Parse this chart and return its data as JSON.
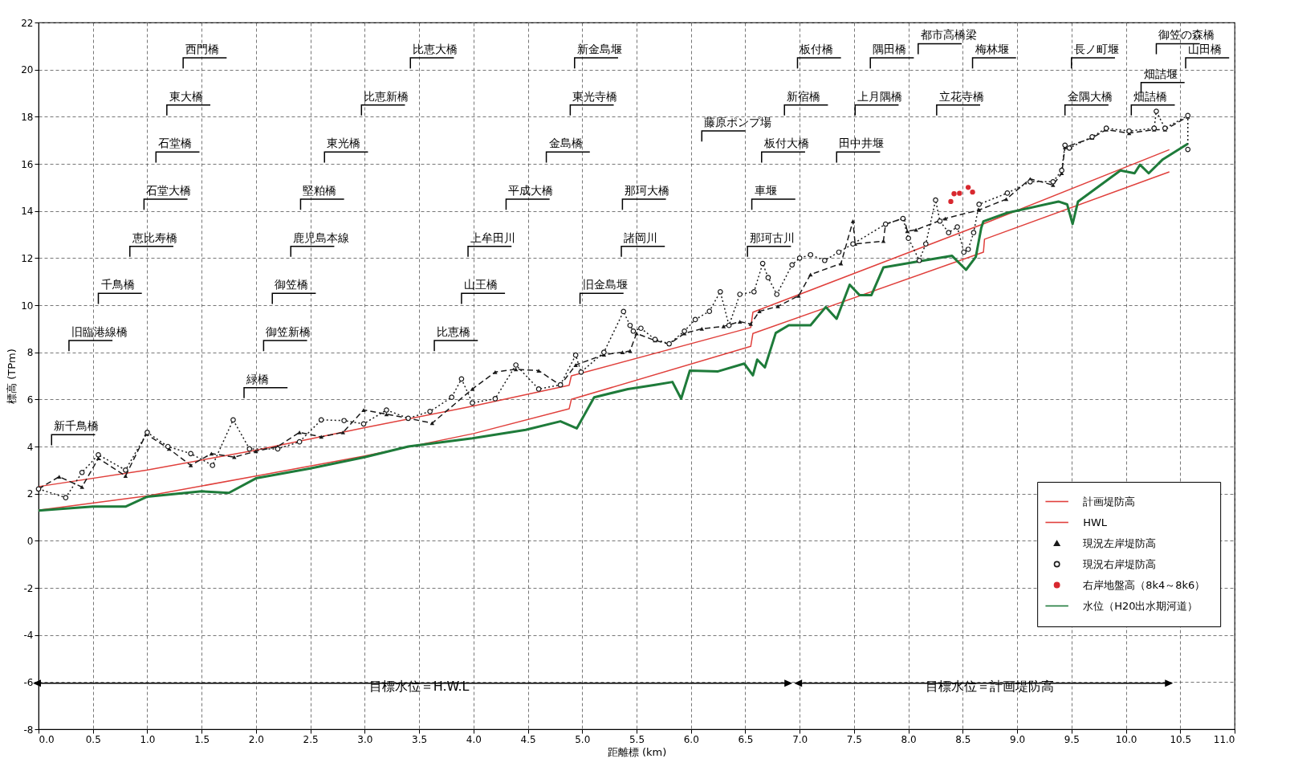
{
  "chart_data": {
    "type": "line",
    "xlabel": "距離標 (km)",
    "ylabel": "標高 (TPm)",
    "xlim": [
      0,
      11
    ],
    "ylim": [
      -8,
      22
    ],
    "xticks": [
      {
        "value": 0,
        "label": "0.0"
      },
      {
        "value": 0.5,
        "label": "0.5"
      },
      {
        "value": 1,
        "label": "1.0"
      },
      {
        "value": 1.5,
        "label": "1.5"
      },
      {
        "value": 2,
        "label": "2.0"
      },
      {
        "value": 2.5,
        "label": "2.5"
      },
      {
        "value": 3,
        "label": "3.0"
      },
      {
        "value": 3.5,
        "label": "3.5"
      },
      {
        "value": 4,
        "label": "4.0"
      },
      {
        "value": 4.5,
        "label": "4.5"
      },
      {
        "value": 5,
        "label": "5.0"
      },
      {
        "value": 5.5,
        "label": "5.5"
      },
      {
        "value": 6,
        "label": "6.0"
      },
      {
        "value": 6.5,
        "label": "6.5"
      },
      {
        "value": 7,
        "label": "7.0"
      },
      {
        "value": 7.5,
        "label": "7.5"
      },
      {
        "value": 8,
        "label": "8.0"
      },
      {
        "value": 8.5,
        "label": "8.5"
      },
      {
        "value": 9,
        "label": "9.0"
      },
      {
        "value": 9.5,
        "label": "9.5"
      },
      {
        "value": 10,
        "label": "10.0"
      },
      {
        "value": 10.5,
        "label": "10.5"
      },
      {
        "value": 11,
        "label": "11.0"
      }
    ],
    "yticks": [
      -8,
      -6,
      -4,
      -2,
      0,
      2,
      4,
      6,
      8,
      10,
      12,
      14,
      16,
      18,
      20,
      22
    ],
    "grid": true,
    "legend": "bottom right",
    "series": [
      {
        "name": "計画堤防高",
        "color": "#e0403c",
        "line_style": "solid",
        "marker": "none",
        "x": [
          0,
          1,
          2,
          3,
          4,
          4.88,
          4.9,
          6.55,
          6.57,
          8.69,
          10.4
        ],
        "values": [
          2.3,
          3.0,
          3.85,
          4.8,
          5.72,
          6.6,
          7.0,
          9.05,
          9.7,
          13.45,
          16.6
        ]
      },
      {
        "name": "HWL",
        "color": "#e0403c",
        "line_style": "solid",
        "marker": "none",
        "x": [
          0,
          1,
          2,
          3,
          4,
          4.88,
          4.9,
          6.55,
          6.57,
          8.69,
          8.7,
          10.4
        ],
        "values": [
          1.3,
          1.9,
          2.75,
          3.6,
          4.55,
          5.6,
          6.0,
          8.25,
          8.8,
          12.25,
          12.8,
          15.66
        ]
      },
      {
        "name": "現況左岸堤防高",
        "color": "#1a1a1a",
        "line_style": "dashed",
        "marker": "triangle",
        "x": [
          0,
          0.19,
          0.4,
          0.55,
          0.8,
          0.99,
          1.2,
          1.4,
          1.59,
          1.8,
          2.0,
          2.2,
          2.4,
          2.6,
          2.8,
          2.99,
          3.2,
          3.4,
          3.62,
          3.99,
          4.2,
          4.39,
          4.6,
          4.8,
          4.94,
          5.2,
          5.37,
          5.44,
          5.5,
          5.67,
          5.8,
          5.94,
          6.1,
          6.3,
          6.45,
          6.55,
          6.63,
          6.8,
          6.99,
          7.1,
          7.38,
          7.49,
          7.51,
          7.77,
          7.79,
          7.96,
          7.99,
          8.07,
          8.34,
          8.65,
          8.9,
          9.12,
          9.33,
          9.41,
          9.44,
          9.69,
          9.82,
          10.03,
          10.26,
          10.36,
          10.57
        ],
        "values": [
          2.2,
          2.72,
          2.28,
          3.5,
          2.75,
          4.53,
          3.9,
          3.2,
          3.7,
          3.55,
          3.8,
          4.0,
          4.6,
          4.41,
          4.6,
          5.55,
          5.37,
          5.2,
          4.99,
          6.44,
          7.16,
          7.28,
          7.22,
          6.6,
          7.46,
          7.9,
          8.0,
          8.06,
          8.8,
          8.5,
          8.35,
          8.8,
          9.0,
          9.1,
          9.3,
          9.2,
          9.74,
          9.95,
          10.4,
          11.3,
          11.77,
          13.57,
          12.6,
          12.72,
          13.44,
          13.7,
          13.14,
          13.2,
          13.68,
          14.04,
          14.5,
          15.36,
          15.1,
          15.6,
          16.7,
          17.1,
          17.45,
          17.3,
          17.45,
          17.45,
          18.0
        ]
      },
      {
        "name": "現況右岸堤防高",
        "color": "#1a1a1a",
        "line_style": "dotted",
        "marker": "circle",
        "x": [
          0,
          0.25,
          0.4,
          0.55,
          0.8,
          1.0,
          1.19,
          1.4,
          1.6,
          1.79,
          1.94,
          2.2,
          2.4,
          2.6,
          2.81,
          2.99,
          3.2,
          3.4,
          3.6,
          3.8,
          3.89,
          3.99,
          4.2,
          4.39,
          4.6,
          4.8,
          4.94,
          4.99,
          5.2,
          5.38,
          5.44,
          5.47,
          5.54,
          5.67,
          5.8,
          5.94,
          6.04,
          6.17,
          6.27,
          6.35,
          6.45,
          6.58,
          6.66,
          6.71,
          6.79,
          6.93,
          7.0,
          7.1,
          7.23,
          7.36,
          7.49,
          7.79,
          7.95,
          8.0,
          8.1,
          8.16,
          8.25,
          8.29,
          8.37,
          8.45,
          8.51,
          8.55,
          8.6,
          8.65,
          8.91,
          9.12,
          9.33,
          9.41,
          9.44,
          9.48,
          9.69,
          9.82,
          10.03,
          10.26,
          10.28,
          10.36,
          10.57,
          10.57
        ],
        "values": [
          2.2,
          1.83,
          2.9,
          3.65,
          3.0,
          4.6,
          4.0,
          3.7,
          3.2,
          5.13,
          3.9,
          3.9,
          4.2,
          5.13,
          5.1,
          4.96,
          5.55,
          5.2,
          5.49,
          6.09,
          6.87,
          5.85,
          6.03,
          7.46,
          6.44,
          6.62,
          7.88,
          7.16,
          8.0,
          9.73,
          9.14,
          8.9,
          9.02,
          8.55,
          8.36,
          8.9,
          9.39,
          9.74,
          10.57,
          9.14,
          10.46,
          10.57,
          11.77,
          11.17,
          10.46,
          11.71,
          12.0,
          12.14,
          11.9,
          12.25,
          12.6,
          13.44,
          13.68,
          12.84,
          11.9,
          12.6,
          14.46,
          13.57,
          13.08,
          13.32,
          12.25,
          12.37,
          13.08,
          14.28,
          14.76,
          15.24,
          15.24,
          15.72,
          16.79,
          16.67,
          17.15,
          17.51,
          17.39,
          17.51,
          18.23,
          17.51,
          18.05,
          16.61
        ]
      },
      {
        "name": "右岸地盤高（8k4～8k6）",
        "type": "scatter",
        "color": "#d8282f",
        "marker": "circle",
        "x": [
          8.39,
          8.42,
          8.47,
          8.55,
          8.59
        ],
        "values": [
          14.4,
          14.73,
          14.75,
          15.0,
          14.8
        ]
      },
      {
        "name": "水位（H20出水期河道）",
        "color": "#1e7b3a",
        "line_style": "solid",
        "marker": "none",
        "x": [
          0,
          0.5,
          0.8,
          1.0,
          1.5,
          1.75,
          2.0,
          2.5,
          3.0,
          3.4,
          3.99,
          4.2,
          4.48,
          4.8,
          4.95,
          5.11,
          5.42,
          5.67,
          5.83,
          5.91,
          5.99,
          6.25,
          6.49,
          6.57,
          6.61,
          6.68,
          6.78,
          6.9,
          7.1,
          7.24,
          7.34,
          7.46,
          7.55,
          7.66,
          7.77,
          8.06,
          8.4,
          8.53,
          8.62,
          8.67,
          8.69,
          8.91,
          9.38,
          9.46,
          9.51,
          9.56,
          9.95,
          10.08,
          10.13,
          10.21,
          10.34,
          10.57
        ],
        "values": [
          1.28,
          1.45,
          1.45,
          1.87,
          2.1,
          2.03,
          2.65,
          3.07,
          3.55,
          4.0,
          4.35,
          4.5,
          4.71,
          5.07,
          4.77,
          6.09,
          6.44,
          6.62,
          6.74,
          6.03,
          7.22,
          7.19,
          7.52,
          7.02,
          7.69,
          7.36,
          8.82,
          9.15,
          9.15,
          9.92,
          9.42,
          10.87,
          10.43,
          10.43,
          11.6,
          11.83,
          12.1,
          11.5,
          12.05,
          13.28,
          13.56,
          13.92,
          14.4,
          14.28,
          13.45,
          14.4,
          15.72,
          15.6,
          15.96,
          15.6,
          16.19,
          16.85
        ]
      }
    ],
    "annotations": [
      "新千鳥橋",
      "旧臨港線橋",
      "千鳥橋",
      "恵比寿橋",
      "石堂大橋",
      "石堂橋",
      "東大橋",
      "西門橋",
      "緑橋",
      "御笠新橋",
      "御笠橋",
      "鹿児島本線",
      "堅粕橋",
      "東光橋",
      "比恵新橋",
      "比恵大橋",
      "比恵橋",
      "山王橋",
      "上牟田川",
      "平成大橋",
      "金島橋",
      "東光寺橋",
      "新金島堰",
      "旧金島堰",
      "諸岡川",
      "那珂大橋",
      "藤原ポンプ場",
      "那珂古川",
      "車堰",
      "板付大橋",
      "新宿橋",
      "板付橋",
      "田中井堰",
      "上月隅橋",
      "隅田橋",
      "都市高橋梁",
      "立花寺橋",
      "梅林堰",
      "金隅大橋",
      "長ノ町堰",
      "畑詰橋",
      "畑詰堰",
      "御笠の森橋",
      "山田橋",
      "目標水位＝H.W.L",
      "目標水位＝計画堤防高"
    ]
  }
}
